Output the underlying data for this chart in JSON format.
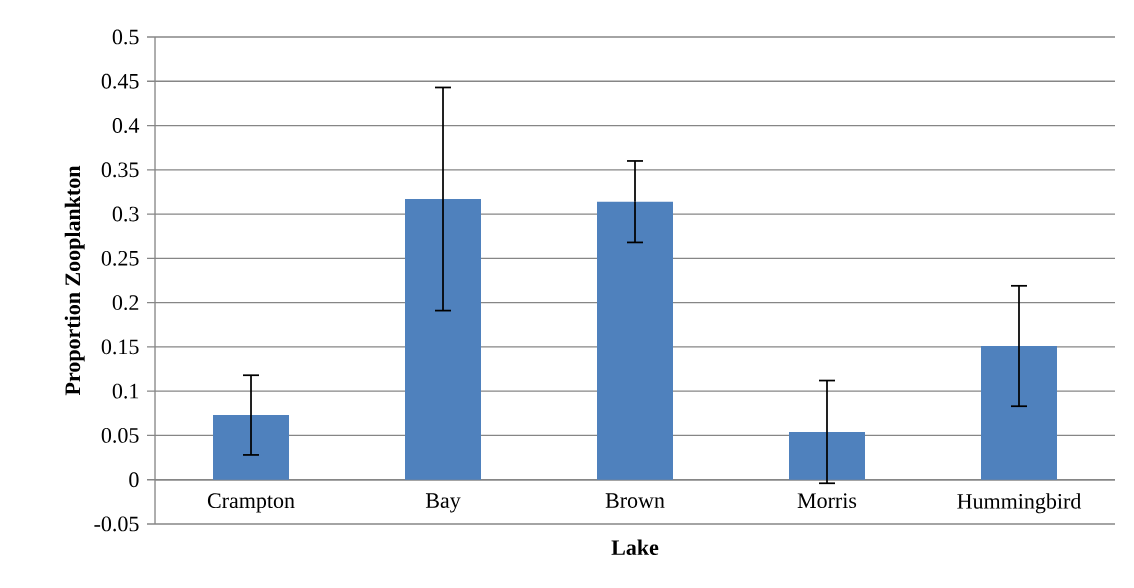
{
  "chart_data": {
    "type": "bar",
    "xlabel": "Lake",
    "ylabel": "Proportion Zooplankton",
    "categories": [
      "Crampton",
      "Bay",
      "Brown",
      "Morris",
      "Hummingbird"
    ],
    "values": [
      0.073,
      0.317,
      0.314,
      0.054,
      0.151
    ],
    "errors": [
      0.045,
      0.126,
      0.046,
      0.058,
      0.068
    ],
    "color": "#4f81bd",
    "ylim": [
      -0.05,
      0.5
    ],
    "yticks": [
      -0.05,
      0,
      0.05,
      0.1,
      0.15,
      0.2,
      0.25,
      0.3,
      0.35,
      0.4,
      0.45,
      0.5
    ],
    "grid": "y"
  }
}
